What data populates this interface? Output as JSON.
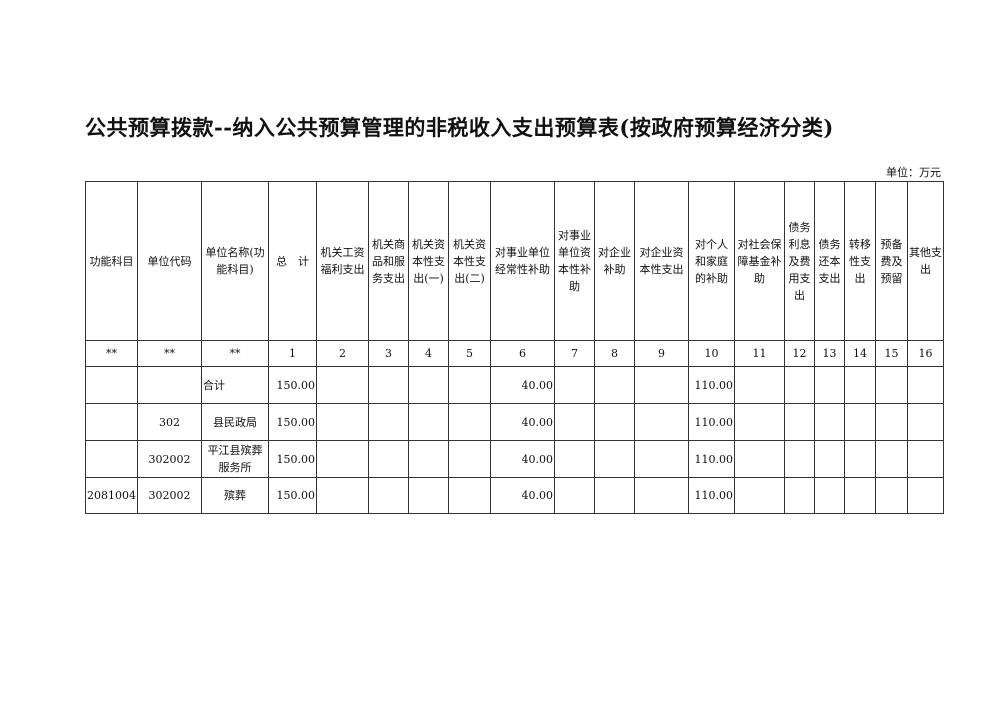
{
  "title": "公共预算拨款--纳入公共预算管理的非税收入支出预算表(按政府预算经济分类)",
  "unit": "单位：万元",
  "headers": [
    "功能科目",
    "单位代码",
    "单位名称(功能科目)",
    "总　计",
    "机关工资福利支出",
    "机关商品和服务支出",
    "机关资本性支出(一)",
    "机关资本性支出(二)",
    "对事业单位经常性补助",
    "对事业单位资本性补助",
    "对企业补助",
    "对企业资本性支出",
    "对个人和家庭的补助",
    "对社会保障基金补助",
    "债务利息及费用支出",
    "债务还本支出",
    "转移性支出",
    "预备费及预留",
    "其他支出"
  ],
  "numbers": [
    "**",
    "**",
    "**",
    "1",
    "2",
    "3",
    "4",
    "5",
    "6",
    "7",
    "8",
    "9",
    "10",
    "11",
    "12",
    "13",
    "14",
    "15",
    "16"
  ],
  "rows": [
    {
      "func": "",
      "code": "",
      "name": "合计",
      "total": "150.00",
      "c6": "40.00",
      "c10": "110.00"
    },
    {
      "func": "",
      "code": "302",
      "name": "县民政局",
      "total": "150.00",
      "c6": "40.00",
      "c10": "110.00"
    },
    {
      "func": "",
      "code": "302002",
      "name": "平江县殡葬服务所",
      "total": "150.00",
      "c6": "40.00",
      "c10": "110.00"
    },
    {
      "func": "2081004",
      "code": "302002",
      "name": "殡葬",
      "total": "150.00",
      "c6": "40.00",
      "c10": "110.00"
    }
  ]
}
